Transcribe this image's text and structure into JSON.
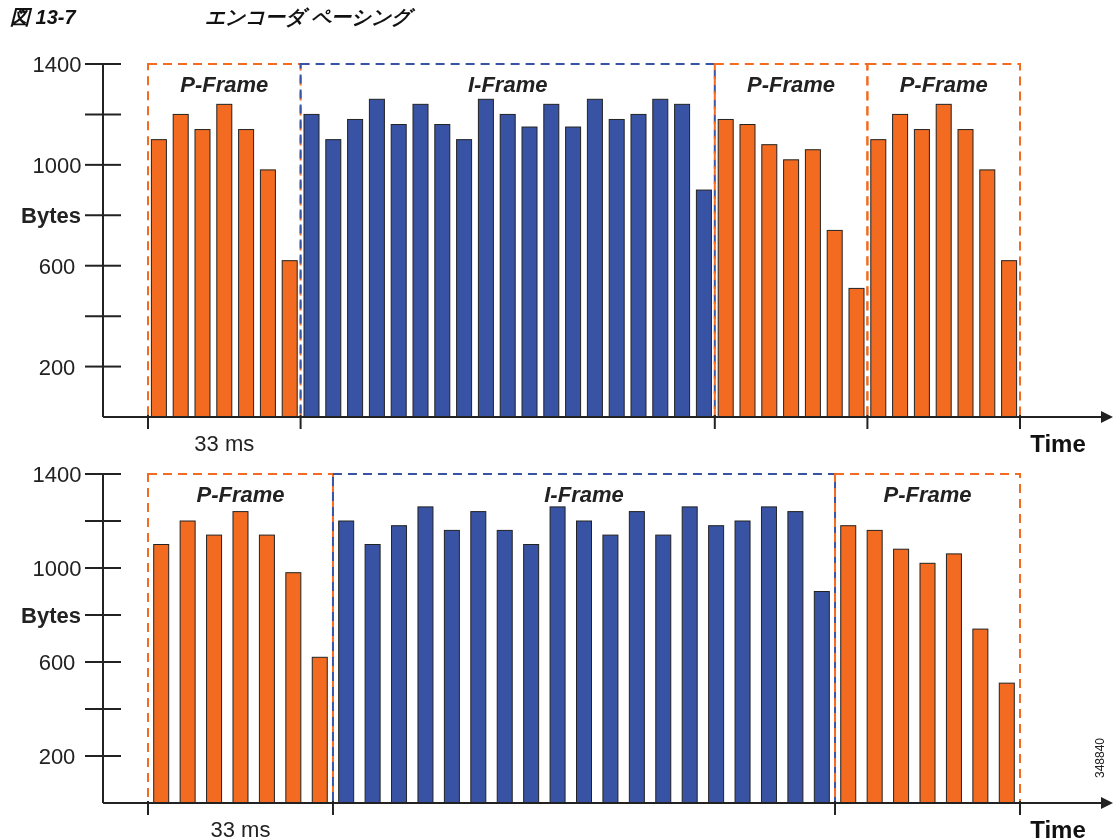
{
  "chart_data": [
    {
      "type": "bar",
      "title": "図 13-7",
      "subtitle": "エンコーダ ペーシング",
      "xlabel": "Time",
      "ylabel": "Bytes",
      "categories": [
        null,
        null,
        null,
        null,
        null,
        null,
        null,
        null,
        null,
        null,
        null,
        null,
        null,
        null,
        null,
        null,
        null,
        null,
        null,
        null,
        null,
        null,
        null,
        null,
        null,
        null,
        null,
        null,
        null,
        null,
        null,
        null,
        null,
        null,
        null,
        null,
        null,
        null,
        null,
        null
      ],
      "ylim": [
        0,
        1400
      ],
      "yticks": [
        200,
        600,
        1000,
        1400
      ],
      "values": [
        1100,
        1200,
        1140,
        1240,
        1140,
        980,
        620,
        1200,
        1100,
        1180,
        1260,
        1160,
        1240,
        1160,
        1100,
        1260,
        1200,
        1150,
        1240,
        1150,
        1260,
        1180,
        1200,
        1260,
        1240,
        900,
        1180,
        1160,
        1080,
        1020,
        1060,
        740,
        510,
        1100,
        1200,
        1140,
        1240,
        1140,
        980,
        620
      ],
      "colors": [
        "#f26b21",
        "#f26b21",
        "#f26b21",
        "#f26b21",
        "#f26b21",
        "#f26b21",
        "#f26b21",
        "#3953a4",
        "#3953a4",
        "#3953a4",
        "#3953a4",
        "#3953a4",
        "#3953a4",
        "#3953a4",
        "#3953a4",
        "#3953a4",
        "#3953a4",
        "#3953a4",
        "#3953a4",
        "#3953a4",
        "#3953a4",
        "#3953a4",
        "#3953a4",
        "#3953a4",
        "#3953a4",
        "#3953a4",
        "#f26b21",
        "#f26b21",
        "#f26b21",
        "#f26b21",
        "#f26b21",
        "#f26b21",
        "#f26b21",
        "#f26b21",
        "#f26b21",
        "#f26b21",
        "#f26b21",
        "#f26b21",
        "#f26b21",
        "#f26b21"
      ],
      "annotations": [
        "P-Frame",
        "I-Frame",
        "P-Frame",
        "P-Frame",
        "33 ms"
      ]
    },
    {
      "type": "bar",
      "xlabel": "Time",
      "ylabel": "Bytes",
      "categories": [
        null,
        null,
        null,
        null,
        null,
        null,
        null,
        null,
        null,
        null,
        null,
        null,
        null,
        null,
        null,
        null,
        null,
        null,
        null,
        null,
        null,
        null,
        null,
        null,
        null,
        null,
        null,
        null,
        null,
        null,
        null,
        null,
        null
      ],
      "ylim": [
        0,
        1400
      ],
      "yticks": [
        200,
        600,
        1000,
        1400
      ],
      "values": [
        1100,
        1200,
        1140,
        1240,
        1140,
        980,
        620,
        1200,
        1100,
        1180,
        1260,
        1160,
        1240,
        1160,
        1100,
        1260,
        1200,
        1140,
        1240,
        1140,
        1260,
        1180,
        1200,
        1260,
        1240,
        900,
        1180,
        1160,
        1080,
        1020,
        1060,
        740,
        510
      ],
      "colors": [
        "#f26b21",
        "#f26b21",
        "#f26b21",
        "#f26b21",
        "#f26b21",
        "#f26b21",
        "#f26b21",
        "#3953a4",
        "#3953a4",
        "#3953a4",
        "#3953a4",
        "#3953a4",
        "#3953a4",
        "#3953a4",
        "#3953a4",
        "#3953a4",
        "#3953a4",
        "#3953a4",
        "#3953a4",
        "#3953a4",
        "#3953a4",
        "#3953a4",
        "#3953a4",
        "#3953a4",
        "#3953a4",
        "#3953a4",
        "#f26b21",
        "#f26b21",
        "#f26b21",
        "#f26b21",
        "#f26b21",
        "#f26b21",
        "#f26b21"
      ],
      "annotations": [
        "P-Frame",
        "I-Frame",
        "P-Frame",
        "33 ms",
        "348840"
      ]
    }
  ]
}
